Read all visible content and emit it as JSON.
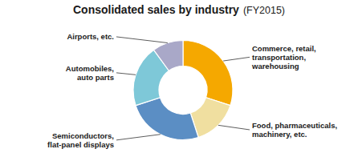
{
  "chart_data": {
    "type": "donut",
    "title": "Consolidated sales by industry",
    "subtitle": "(FY2015)",
    "categories": [
      "Commerce, retail,\ntransportation,\nwarehousing",
      "Food, pharmaceuticals,\nmachinery, etc.",
      "Semiconductors,\nflat-panel displays",
      "Automobiles,\nauto parts",
      "Airports, etc."
    ],
    "values": [
      30,
      15,
      25,
      20,
      10
    ],
    "colors": [
      "#F5A800",
      "#F0DFA0",
      "#5B8EC4",
      "#7EC8D8",
      "#A9A8C8"
    ]
  }
}
